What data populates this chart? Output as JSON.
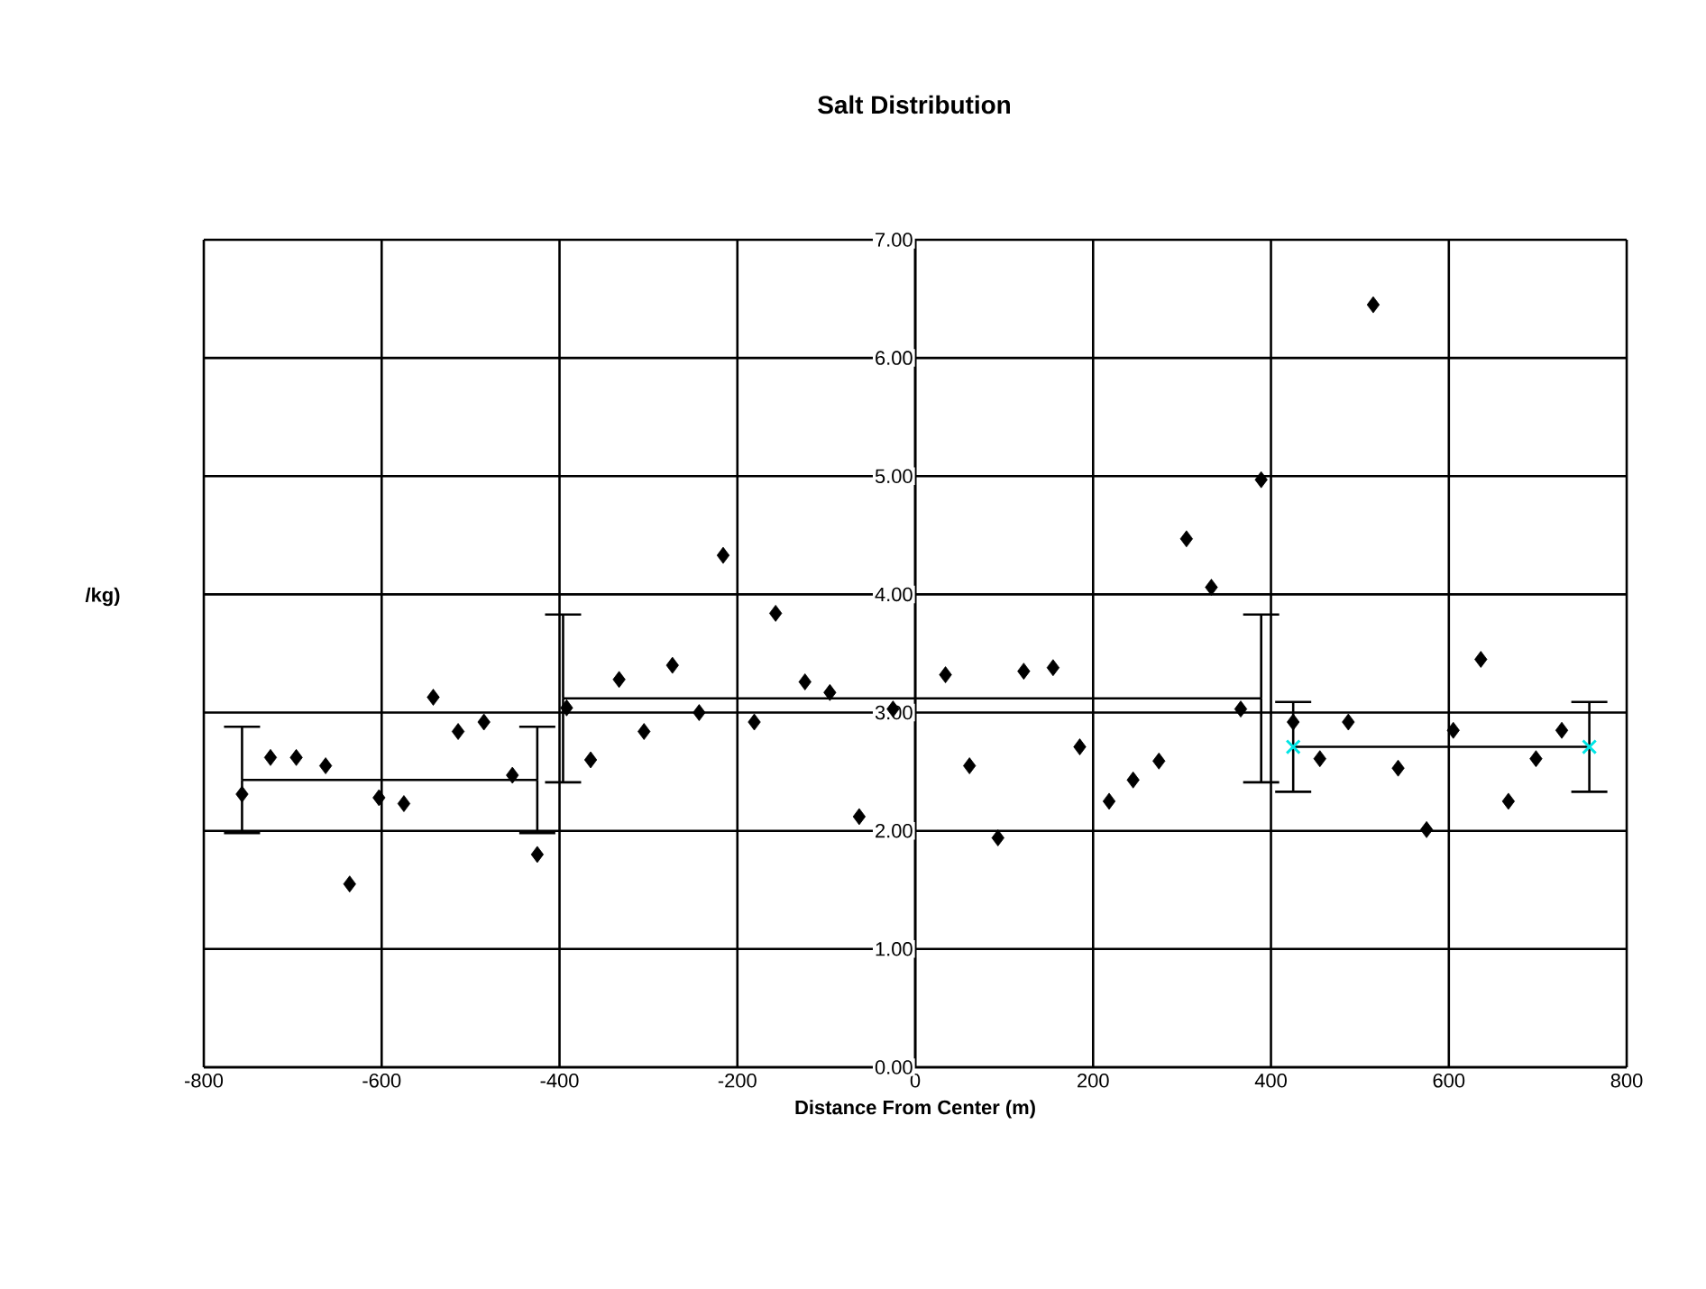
{
  "chart_data": {
    "type": "scatter",
    "title": "Salt Distribution",
    "xlabel": "Distance From Center (m)",
    "ylabel": "/kg)",
    "xlim": [
      -800,
      800
    ],
    "xticks": [
      -800,
      -600,
      -400,
      -200,
      0,
      200,
      400,
      600,
      800
    ],
    "ylim": [
      0,
      7
    ],
    "yticks": [
      {
        "value": 0,
        "label": "0.00"
      },
      {
        "value": 1,
        "label": "1.00"
      },
      {
        "value": 2,
        "label": "2.00"
      },
      {
        "value": 3,
        "label": "3.00"
      },
      {
        "value": 4,
        "label": "4.00"
      },
      {
        "value": 5,
        "label": "5.00"
      },
      {
        "value": 6,
        "label": "6.00"
      },
      {
        "value": 7,
        "label": "7.00"
      }
    ],
    "grid": true,
    "series": [
      {
        "color": "#000000",
        "marker": "diamond",
        "x": [
          -757,
          -725,
          -696,
          -663,
          -636,
          -603,
          -575,
          -542,
          -514,
          -485,
          -453,
          -425,
          -392,
          -365,
          -333,
          -305,
          -273,
          -243,
          -216,
          -181,
          -157,
          -124,
          -96,
          -63,
          -25,
          34,
          61,
          93,
          122,
          155,
          185,
          218,
          245,
          274,
          305,
          333,
          366,
          389,
          425,
          455,
          487,
          515,
          543,
          575,
          605,
          636,
          667,
          698,
          727
        ],
        "values": [
          2.31,
          2.62,
          2.62,
          2.55,
          1.55,
          2.28,
          2.23,
          3.13,
          2.84,
          2.92,
          2.47,
          1.8,
          3.04,
          2.6,
          3.28,
          2.84,
          3.4,
          3.0,
          4.33,
          2.92,
          3.84,
          3.26,
          3.17,
          2.12,
          3.03,
          3.32,
          2.55,
          1.94,
          3.35,
          3.38,
          2.71,
          2.25,
          2.43,
          2.59,
          4.47,
          4.06,
          3.03,
          4.97,
          2.92,
          2.61,
          2.92,
          6.45,
          2.53,
          2.01,
          2.85,
          3.45,
          2.25,
          2.61,
          2.85
        ]
      },
      {
        "type": "line",
        "color": "#000000",
        "marker": "none",
        "x": [
          -757,
          -425
        ],
        "values": [
          2.43,
          2.43
        ],
        "errors": [
          0.45,
          0.45
        ]
      },
      {
        "type": "line",
        "color": "#000000",
        "marker": "none",
        "x": [
          -396,
          389
        ],
        "values": [
          3.12,
          3.12
        ],
        "errors": [
          0.71,
          0.71
        ]
      },
      {
        "type": "line",
        "color": "#000000",
        "marker": "none",
        "x": [
          425,
          758
        ],
        "values": [
          2.71,
          2.71
        ],
        "errors": [
          0.38,
          0.38
        ]
      },
      {
        "color": "#00e5e5",
        "marker": "cross",
        "x": [
          425,
          758
        ],
        "values": [
          2.71,
          2.71
        ]
      }
    ]
  }
}
